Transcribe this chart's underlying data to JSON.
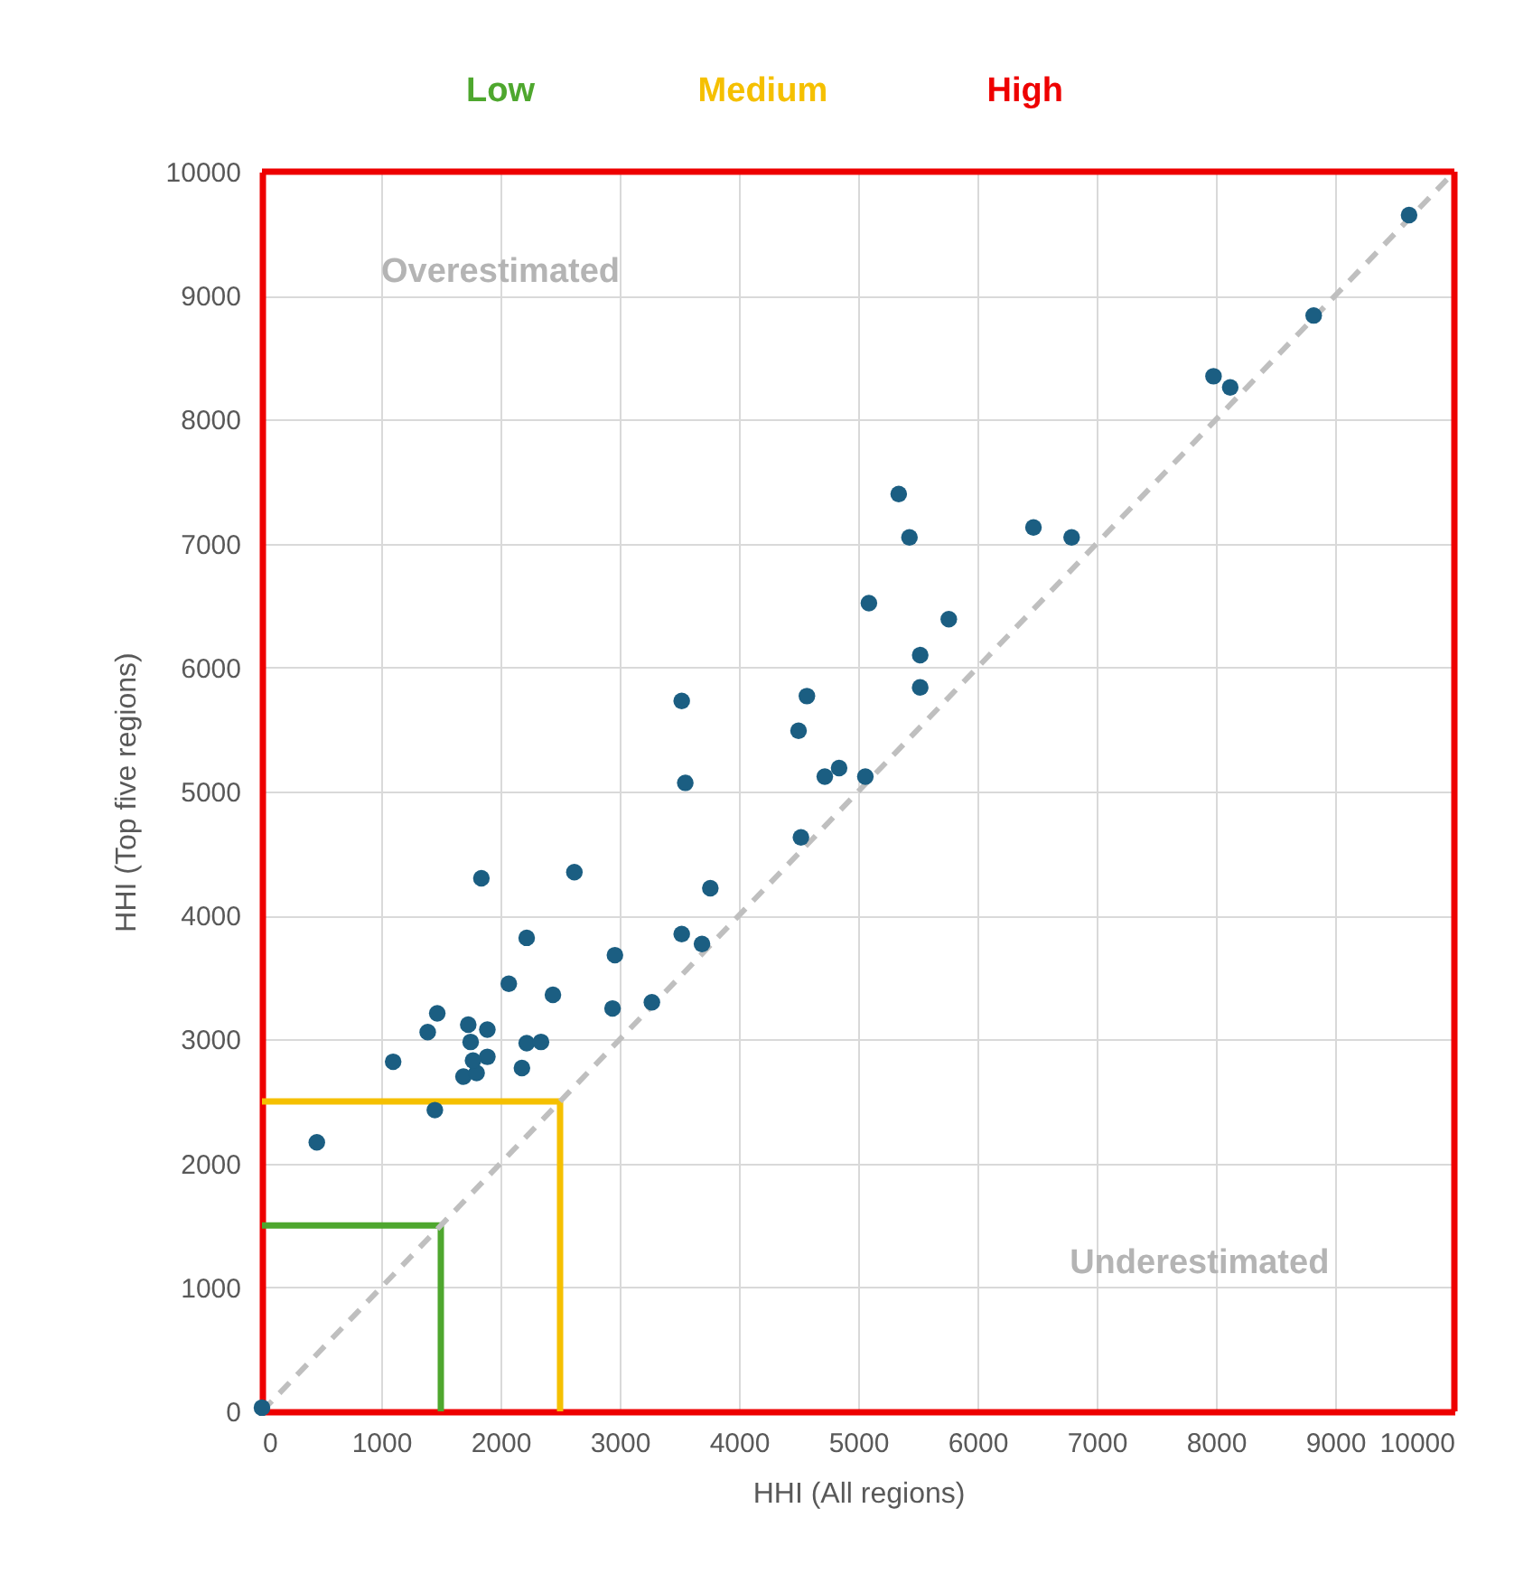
{
  "chart_data": {
    "type": "scatter",
    "xlabel": "HHI (All regions)",
    "ylabel": "HHI (Top five regions)",
    "xlim": [
      0,
      10000
    ],
    "ylim": [
      0,
      10000
    ],
    "xticks": [
      0,
      1000,
      2000,
      3000,
      4000,
      5000,
      6000,
      7000,
      8000,
      9000,
      10000
    ],
    "yticks": [
      0,
      1000,
      2000,
      3000,
      4000,
      5000,
      6000,
      7000,
      8000,
      9000,
      10000
    ],
    "grid": true,
    "series": [
      {
        "type": "scatter",
        "color": "#1b5e82",
        "marker": "circle",
        "x": [
          0,
          460,
          1450,
          1100,
          1390,
          1470,
          1730,
          1890,
          1750,
          1890,
          1690,
          1800,
          1770,
          2180,
          2220,
          2340,
          2070,
          2440,
          2220,
          1840,
          2620,
          2940,
          2960,
          3270,
          3520,
          3690,
          3760,
          4520,
          3550,
          3520,
          4500,
          4570,
          4720,
          4840,
          5060,
          5090,
          5340,
          5430,
          5520,
          5520,
          5760,
          6470,
          6790,
          7980,
          8120,
          8820,
          9620
        ],
        "values": [
          30,
          2170,
          2430,
          2820,
          3060,
          3210,
          3120,
          3080,
          2980,
          2860,
          2700,
          2730,
          2830,
          2770,
          2970,
          2980,
          3450,
          3360,
          3820,
          4300,
          4350,
          3250,
          3680,
          3300,
          3850,
          3770,
          4220,
          4630,
          5070,
          5730,
          5490,
          5770,
          5120,
          5190,
          5120,
          6520,
          7400,
          7050,
          6100,
          5840,
          6390,
          7130,
          7050,
          8350,
          8260,
          8840,
          9650
        ]
      },
      {
        "type": "line",
        "color": "#bfbfbf",
        "line_style": "dashed",
        "x": [
          0,
          10000
        ],
        "values": [
          0,
          10000
        ]
      }
    ],
    "ref_lines": [
      {
        "axis": "x",
        "value": 10000,
        "label": "High",
        "color": "#ee0000"
      },
      {
        "axis": "y",
        "value": 10000,
        "color": "#ee0000"
      },
      {
        "axis": "x",
        "value": 2500,
        "label": "Medium",
        "color": "#f5c000"
      },
      {
        "axis": "y",
        "value": 2500,
        "color": "#f5c000"
      },
      {
        "axis": "x",
        "value": 1500,
        "label": "Low",
        "color": "#4ea72e"
      },
      {
        "axis": "y",
        "value": 1500,
        "color": "#4ea72e"
      }
    ],
    "annotations": [
      "Overestimated",
      "Underestimated"
    ]
  }
}
